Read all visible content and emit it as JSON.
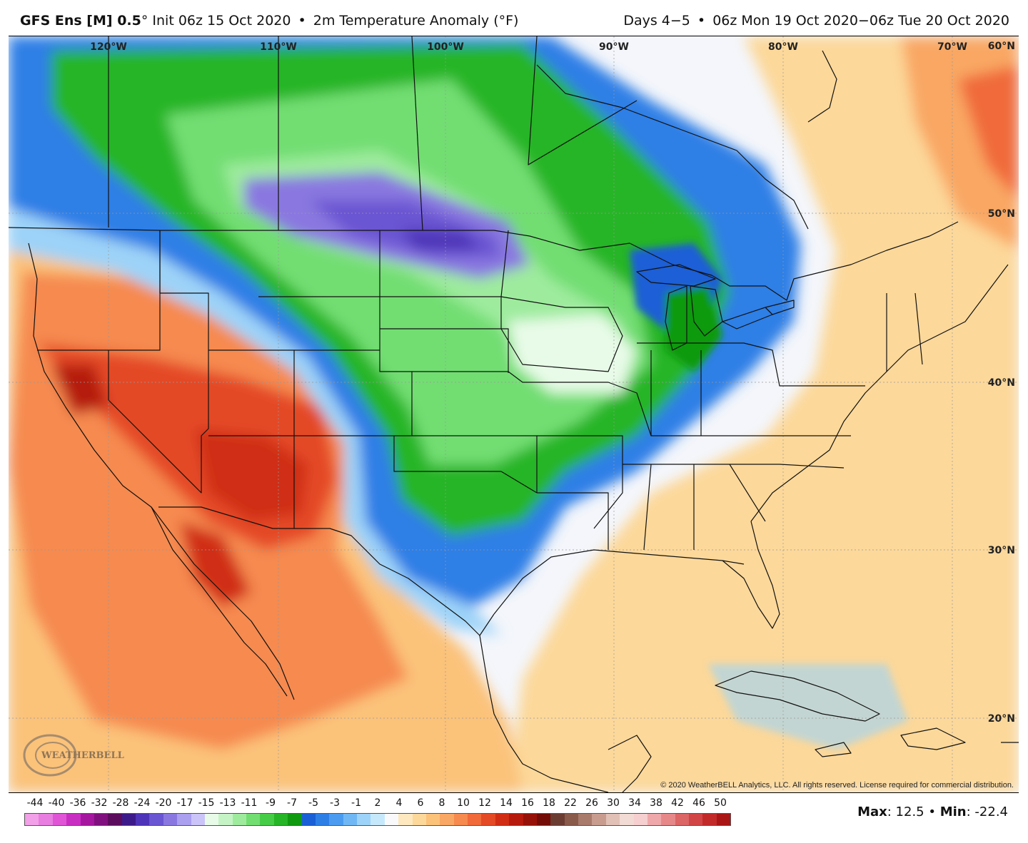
{
  "header": {
    "model": "GFS Ens [M] 0.5",
    "degree": "°",
    "init": "Init 06z 15 Oct 2020",
    "bullet": "•",
    "field": "2m Temperature Anomaly (°F)",
    "days": "Days 4−5",
    "valid": "06z Mon 19 Oct 2020−06z Tue 20 Oct 2020"
  },
  "map": {
    "lon_labels": [
      "120°W",
      "110°W",
      "100°W",
      "90°W",
      "80°W",
      "70°W"
    ],
    "lat_labels": [
      "60°N",
      "50°N",
      "40°N",
      "30°N",
      "20°N"
    ],
    "logo_text": "WEATHERBELL",
    "copyright": "© 2020 WeatherBELL Analytics, LLC. All rights reserved. License required for commercial distribution."
  },
  "colorbar": {
    "ticks": [
      "-44",
      "-40",
      "-36",
      "-32",
      "-28",
      "-24",
      "-20",
      "-17",
      "-15",
      "-13",
      "-11",
      "-9",
      "-7",
      "-5",
      "-3",
      "-1",
      "2",
      "4",
      "6",
      "8",
      "10",
      "12",
      "14",
      "16",
      "18",
      "22",
      "26",
      "30",
      "34",
      "38",
      "42",
      "46",
      "50"
    ],
    "colors": [
      "#f2a0e8",
      "#e87ee0",
      "#df55d6",
      "#c92ec2",
      "#a5179f",
      "#80107d",
      "#5c0c5d",
      "#3d1a8a",
      "#4d34b8",
      "#6a55d2",
      "#8a78e0",
      "#ab9ff0",
      "#cbc4f8",
      "#e8fbe8",
      "#c6f3c6",
      "#9eeb9e",
      "#72de72",
      "#47cc47",
      "#26b526",
      "#0f9a0f",
      "#1a5fd6",
      "#2d7fe6",
      "#4b9cf0",
      "#70b8f5",
      "#9dd3f8",
      "#c6e8fb",
      "#f9f9fb",
      "#fde8c0",
      "#fcd89a",
      "#fbc27a",
      "#f9a764",
      "#f68a4f",
      "#f06a3a",
      "#e44a25",
      "#d02d14",
      "#b51a0c",
      "#961108",
      "#730c06",
      "#6b3c32",
      "#8a5a4b",
      "#a97b6c",
      "#c89d90",
      "#e1c0b6",
      "#f2dbd4",
      "#f6cfd0",
      "#efa8aa",
      "#e6888a",
      "#dc6566",
      "#d14546",
      "#c22a2a",
      "#aa1616"
    ]
  },
  "stats": {
    "max_label": "Max",
    "max_value": "12.5",
    "bullet": "•",
    "min_label": "Min",
    "min_value": "-22.4"
  }
}
